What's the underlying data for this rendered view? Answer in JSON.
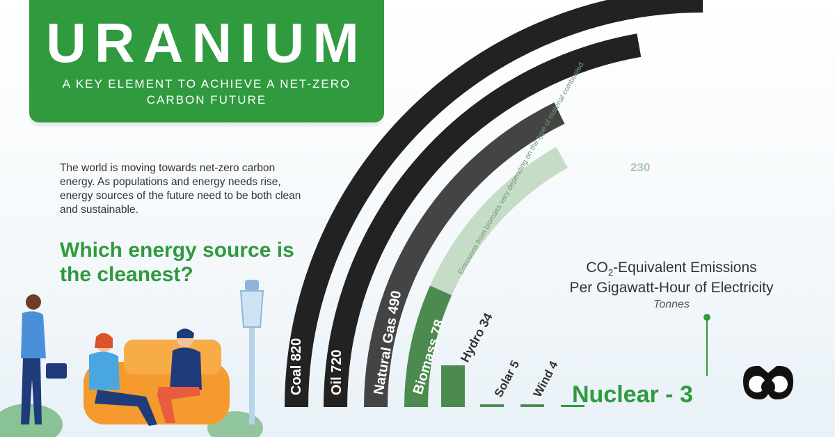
{
  "header": {
    "title": "URANIUM",
    "subtitle": "A KEY ELEMENT TO ACHIEVE A NET-ZERO CARBON FUTURE"
  },
  "intro": "The world is moving towards net-zero carbon energy. As populations and energy needs rise, energy sources of the future need to be both clean and sustainable.",
  "question": "Which energy source is the cleanest?",
  "legend": {
    "line1_prefix": "CO",
    "line1_sub": "2",
    "line1_suffix": "-Equivalent Emissions",
    "line2": "Per Gigawatt-Hour of Electricity",
    "unit": "Tonnes"
  },
  "chart_data": {
    "type": "bar",
    "title": "CO2-Equivalent Emissions Per Gigawatt-Hour of Electricity",
    "unit": "Tonnes",
    "categories": [
      "Coal",
      "Oil",
      "Natural Gas",
      "Biomass",
      "Hydro",
      "Solar",
      "Wind",
      "Nuclear"
    ],
    "values": [
      820,
      720,
      490,
      78,
      34,
      5,
      4,
      3
    ],
    "labels": [
      "Coal 820",
      "Oil 720",
      "Natural Gas 490",
      "Biomass 78",
      "Hydro 34",
      "Solar 5",
      "Wind 4",
      "Nuclear - 3"
    ],
    "biomass_range_max": 230,
    "biomass_range_label": "230",
    "annotation": "Emissions from biomass vary depending on the type of material combusted.",
    "colors": {
      "Coal": "#222222",
      "Oil": "#222222",
      "Natural Gas": "#444444",
      "Biomass": "#4b8b50",
      "Biomass range": "#c5dcc6",
      "Hydro": "#4b8b50",
      "Solar": "#4b8b50",
      "Wind": "#4b8b50",
      "Nuclear": "#2f9a3e"
    }
  },
  "colors": {
    "brand_green": "#2f9a3e",
    "dark": "#222222"
  }
}
